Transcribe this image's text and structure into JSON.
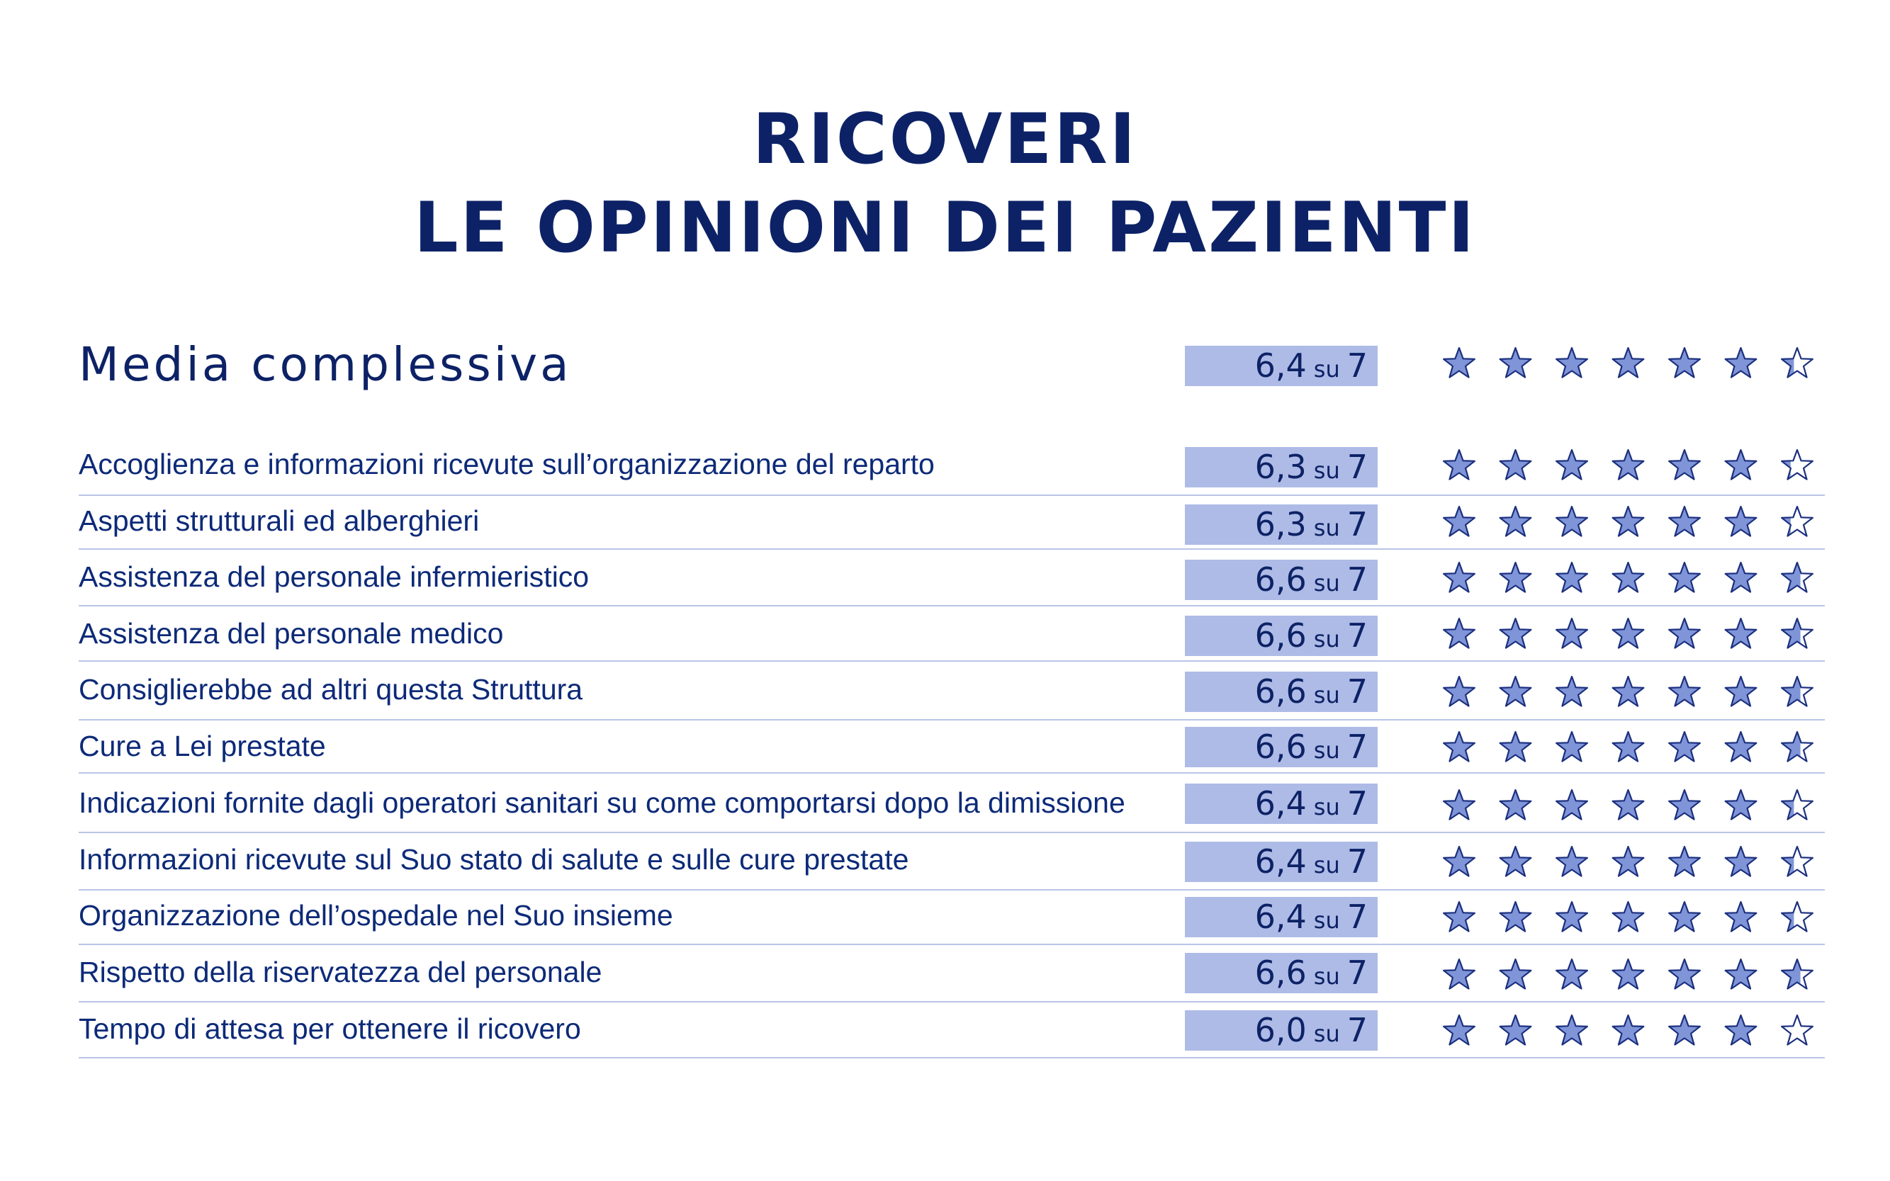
{
  "title": {
    "line1": "RICOVERI",
    "line2": "LE OPINIONI DEI PAZIENTI"
  },
  "colors": {
    "title": "#0d2266",
    "star_fill": "#8095d8",
    "star_stroke": "#1b2f7e",
    "score_box": "#aebbe6",
    "separator": "#b9c5e6"
  },
  "chart_data": {
    "type": "table",
    "max_score": 7,
    "overall": {
      "label": "Media complessiva",
      "value": 6.4,
      "value_text": "6,4",
      "su": "su",
      "max_text": "7"
    },
    "rows": [
      {
        "label": "Accoglienza e informazioni ricevute sull’organizzazione del reparto",
        "value": 6.3,
        "value_text": "6,3",
        "su": "su",
        "max_text": "7"
      },
      {
        "label": "Aspetti strutturali ed alberghieri",
        "value": 6.3,
        "value_text": "6,3",
        "su": "su",
        "max_text": "7"
      },
      {
        "label": "Assistenza del personale infermieristico",
        "value": 6.6,
        "value_text": "6,6",
        "su": "su",
        "max_text": "7"
      },
      {
        "label": "Assistenza del personale medico",
        "value": 6.6,
        "value_text": "6,6",
        "su": "su",
        "max_text": "7"
      },
      {
        "label": "Consiglierebbe ad altri questa Struttura",
        "value": 6.6,
        "value_text": "6,6",
        "su": "su",
        "max_text": "7"
      },
      {
        "label": "Cure a Lei prestate",
        "value": 6.6,
        "value_text": "6,6",
        "su": "su",
        "max_text": "7"
      },
      {
        "label": "Indicazioni fornite dagli operatori sanitari su come comportarsi dopo la dimissione",
        "value": 6.4,
        "value_text": "6,4",
        "su": "su",
        "max_text": "7"
      },
      {
        "label": "Informazioni ricevute sul Suo stato di salute e sulle cure prestate",
        "value": 6.4,
        "value_text": "6,4",
        "su": "su",
        "max_text": "7"
      },
      {
        "label": "Organizzazione dell’ospedale nel Suo insieme",
        "value": 6.4,
        "value_text": "6,4",
        "su": "su",
        "max_text": "7"
      },
      {
        "label": "Rispetto della riservatezza del personale",
        "value": 6.6,
        "value_text": "6,6",
        "su": "su",
        "max_text": "7"
      },
      {
        "label": "Tempo di attesa per ottenere il ricovero",
        "value": 6.0,
        "value_text": "6,0",
        "su": "su",
        "max_text": "7"
      }
    ]
  }
}
